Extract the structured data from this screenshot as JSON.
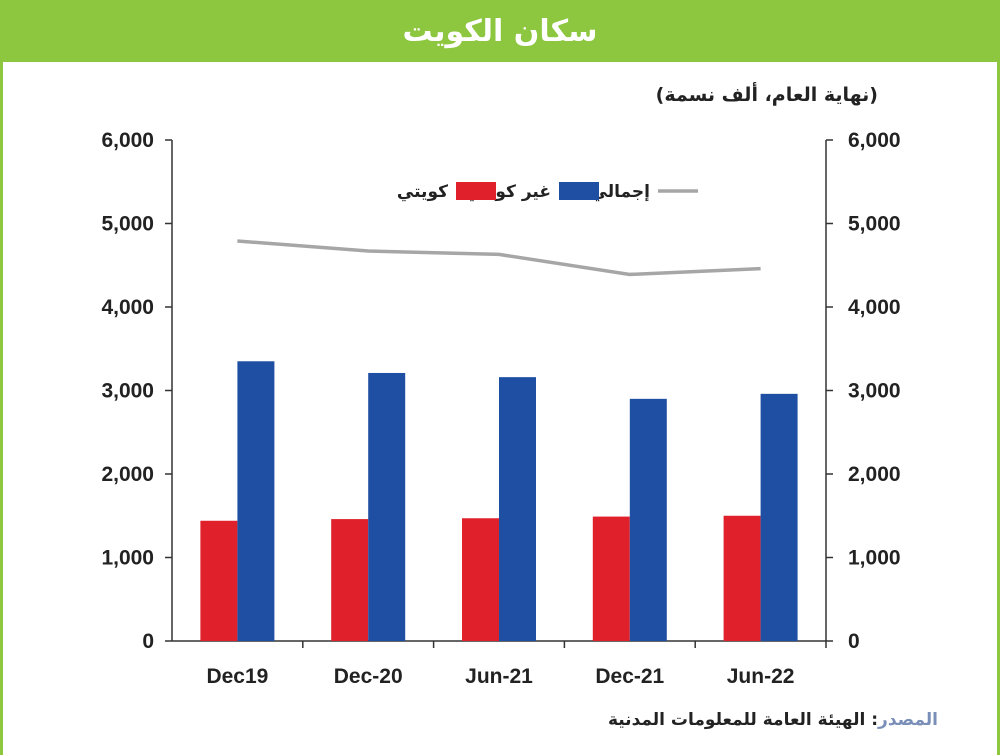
{
  "banner": {
    "title": "سكان الكويت"
  },
  "unit_note": "(نهاية العام، ألف نسمة)",
  "source": {
    "label": "المصدر",
    "text": ": الهيئة العامة للمعلومات المدنية"
  },
  "colors": {
    "banner": "#8dc63f",
    "kuwaiti": "#e0202a",
    "non_kuwaiti": "#1f4fa3",
    "total": "#a6a6a6"
  },
  "chart_data": {
    "type": "bar",
    "categories": [
      "Dec19",
      "Dec-20",
      "Jun-21",
      "Dec-21",
      "Jun-22"
    ],
    "series": [
      {
        "name": "كويتي",
        "type": "bar",
        "color": "#e0202a",
        "values": [
          1440,
          1460,
          1470,
          1490,
          1500
        ]
      },
      {
        "name": "غير كويتي",
        "type": "bar",
        "color": "#1f4fa3",
        "values": [
          3350,
          3210,
          3160,
          2900,
          2960
        ]
      },
      {
        "name": "إجمالي",
        "type": "line",
        "color": "#a6a6a6",
        "values": [
          4790,
          4670,
          4630,
          4390,
          4460
        ]
      }
    ],
    "ylim": [
      0,
      6000
    ],
    "yticks": [
      "0",
      "1,000",
      "2,000",
      "3,000",
      "4,000",
      "5,000",
      "6,000"
    ],
    "ytick_values": [
      0,
      1000,
      2000,
      3000,
      4000,
      5000,
      6000
    ],
    "legend_position": "top",
    "grid": false,
    "dual_axis": true
  }
}
